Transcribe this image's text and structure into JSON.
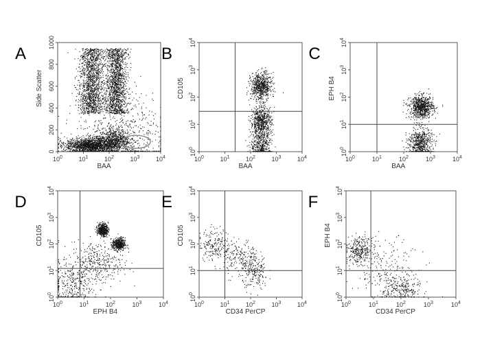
{
  "chart_data": [
    {
      "panel": "A",
      "type": "scatter",
      "xlabel": "BAA",
      "ylabel": "Side Scatter",
      "x_scale": "log",
      "x_ticks": [
        "10^0",
        "10^1",
        "10^2",
        "10^3",
        "10^4"
      ],
      "y_scale": "linear",
      "y_ticks": [
        "0",
        "200",
        "400",
        "600",
        "800",
        "1000"
      ],
      "ylim": [
        0,
        1000
      ],
      "gate": {
        "shape": "ellipse",
        "x_center": 1000,
        "y_center": 90,
        "x_range": [
          300,
          4000
        ],
        "y_range": [
          30,
          150
        ]
      },
      "quadrant_lines": null,
      "populations": [
        {
          "x_center": 20,
          "y_center": 650,
          "x_spread": 0.25,
          "y_spread": 230,
          "count": 1400,
          "shape": "band"
        },
        {
          "x_center": 180,
          "y_center": 650,
          "x_spread": 0.22,
          "y_spread": 230,
          "count": 1400,
          "shape": "band"
        },
        {
          "x_center": 20,
          "y_center": 60,
          "x_spread": 0.5,
          "y_spread": 35,
          "count": 1500
        },
        {
          "x_center": 150,
          "y_center": 110,
          "x_spread": 0.3,
          "y_spread": 50,
          "count": 600
        },
        {
          "x_center": 300,
          "y_center": 150,
          "x_spread": 0.9,
          "y_spread": 200,
          "count": 600
        }
      ]
    },
    {
      "panel": "B",
      "type": "scatter",
      "xlabel": "BAA",
      "ylabel": "CD105",
      "x_scale": "log",
      "x_ticks": [
        "10^0",
        "10^1",
        "10^2",
        "10^3",
        "10^4"
      ],
      "y_scale": "log",
      "y_ticks": [
        "10^0",
        "10^1",
        "10^2",
        "10^3",
        "10^4"
      ],
      "quadrant_lines": {
        "x": 25,
        "y": 30
      },
      "populations": [
        {
          "x_center": 250,
          "y_center": 250,
          "x_spread": 0.2,
          "y_spread": 0.25,
          "count": 650
        },
        {
          "x_center": 250,
          "y_center": 12,
          "x_spread": 0.2,
          "y_spread": 0.3,
          "count": 650
        },
        {
          "x_center": 250,
          "y_center": 1.6,
          "x_spread": 0.2,
          "y_spread": 0.25,
          "count": 350
        }
      ]
    },
    {
      "panel": "C",
      "type": "scatter",
      "xlabel": "BAA",
      "ylabel": "EPH B4",
      "x_scale": "log",
      "x_ticks": [
        "10^0",
        "10^1",
        "10^2",
        "10^3",
        "10^4"
      ],
      "y_scale": "log",
      "y_ticks": [
        "10^0",
        "10^1",
        "10^2",
        "10^3",
        "10^4"
      ],
      "quadrant_lines": {
        "x": 10,
        "y": 10
      },
      "populations": [
        {
          "x_center": 450,
          "y_center": 45,
          "x_spread": 0.22,
          "y_spread": 0.2,
          "count": 750
        },
        {
          "x_center": 400,
          "y_center": 2,
          "x_spread": 0.22,
          "y_spread": 0.3,
          "count": 600
        }
      ]
    },
    {
      "panel": "D",
      "type": "scatter",
      "xlabel": "EPH B4",
      "ylabel": "CD105",
      "x_scale": "log",
      "x_ticks": [
        "10^0",
        "10^1",
        "10^2",
        "10^3",
        "10^4"
      ],
      "y_scale": "log",
      "y_ticks": [
        "10^0",
        "10^1",
        "10^2",
        "10^3",
        "10^4"
      ],
      "quadrant_lines": {
        "x": 7,
        "y": 12
      },
      "populations": [
        {
          "x_center": 50,
          "y_center": 350,
          "x_spread": 0.1,
          "y_spread": 0.12,
          "count": 450
        },
        {
          "x_center": 200,
          "y_center": 100,
          "x_spread": 0.12,
          "y_spread": 0.12,
          "count": 450
        },
        {
          "x_center": 30,
          "y_center": 20,
          "x_spread": 0.5,
          "y_spread": 0.4,
          "count": 350
        },
        {
          "x_center": 3,
          "y_center": 3,
          "x_spread": 0.4,
          "y_spread": 0.45,
          "count": 300
        }
      ]
    },
    {
      "panel": "E",
      "type": "scatter",
      "xlabel": "CD34 PerCP",
      "ylabel": "CD105",
      "x_scale": "log",
      "x_ticks": [
        "10^0",
        "10^1",
        "10^2",
        "10^3",
        "10^4"
      ],
      "y_scale": "log",
      "y_ticks": [
        "10^0",
        "10^1",
        "10^2",
        "10^3",
        "10^4"
      ],
      "quadrant_lines": {
        "x": 10,
        "y": 10
      },
      "populations": [
        {
          "x_center": 4,
          "y_center": 100,
          "x_spread": 0.3,
          "y_spread": 0.3,
          "count": 200
        },
        {
          "x_center": 40,
          "y_center": 30,
          "x_spread": 0.35,
          "y_spread": 0.35,
          "count": 200
        },
        {
          "x_center": 150,
          "y_center": 8,
          "x_spread": 0.25,
          "y_spread": 0.3,
          "count": 180
        }
      ]
    },
    {
      "panel": "F",
      "type": "scatter",
      "xlabel": "CD34 PerCP",
      "ylabel": "EPH B4",
      "x_scale": "log",
      "x_ticks": [
        "10^0",
        "10^1",
        "10^2",
        "10^3",
        "10^4"
      ],
      "y_scale": "log",
      "y_ticks": [
        "10^0",
        "10^1",
        "10^2",
        "10^3",
        "10^4"
      ],
      "quadrant_lines": {
        "x": 8,
        "y": 10
      },
      "populations": [
        {
          "x_center": 3,
          "y_center": 60,
          "x_spread": 0.25,
          "y_spread": 0.25,
          "count": 300
        },
        {
          "x_center": 100,
          "y_center": 2,
          "x_spread": 0.35,
          "y_spread": 0.3,
          "count": 250
        },
        {
          "x_center": 30,
          "y_center": 10,
          "x_spread": 0.6,
          "y_spread": 0.6,
          "count": 200
        }
      ]
    }
  ],
  "colors": {
    "dots": "#111111",
    "frame": "#555555",
    "gate_line": "#888888",
    "quadrant_line": "#444444"
  }
}
